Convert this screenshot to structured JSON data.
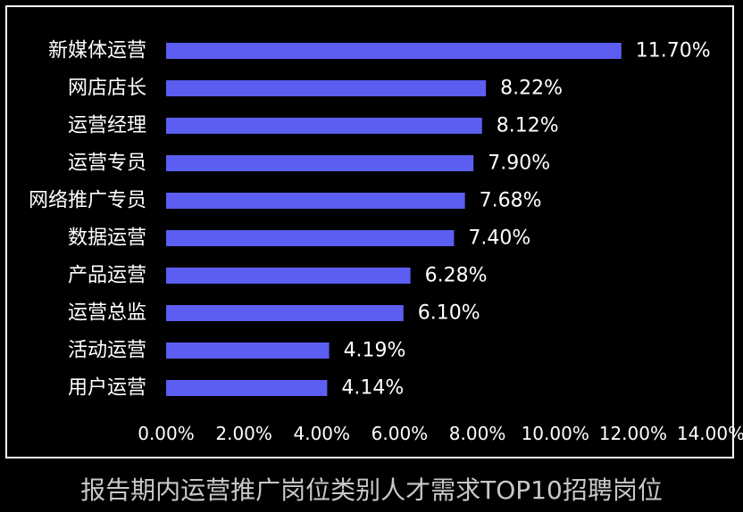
{
  "caption": "报告期内运营推广岗位类别人才需求TOP10招聘岗位",
  "colors": {
    "bar": "#5b5ef0",
    "text": "#ffffff",
    "background": "#000000",
    "caption": "#c8c8c8"
  },
  "chart_data": {
    "type": "bar",
    "orientation": "horizontal",
    "categories": [
      "新媒体运营",
      "网店店长",
      "运营经理",
      "运营专员",
      "网络推广专员",
      "数据运营",
      "产品运营",
      "运营总监",
      "活动运营",
      "用户运营"
    ],
    "values": [
      11.7,
      8.22,
      8.12,
      7.9,
      7.68,
      7.4,
      6.28,
      6.1,
      4.19,
      4.14
    ],
    "value_labels": [
      "11.70%",
      "8.22%",
      "8.12%",
      "7.90%",
      "7.68%",
      "7.40%",
      "6.28%",
      "6.10%",
      "4.19%",
      "4.14%"
    ],
    "xticks": [
      "0.00%",
      "2.00%",
      "4.00%",
      "6.00%",
      "8.00%",
      "10.00%",
      "12.00%",
      "14.00%"
    ],
    "xlim": [
      0,
      14
    ],
    "grid": false,
    "legend": "none"
  }
}
